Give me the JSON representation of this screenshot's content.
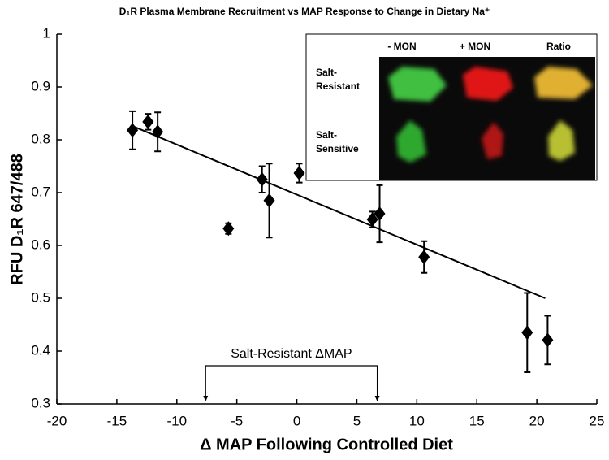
{
  "chart_data": {
    "type": "scatter",
    "title": "D₁R Plasma Membrane Recruitment vs MAP Response to Change in Dietary Na⁺",
    "x_label": "Δ MAP Following Controlled Diet",
    "y_label": "RFU D₁R 647/488",
    "x": [
      -13.7,
      -12.4,
      -11.6,
      -5.7,
      -2.9,
      -2.3,
      0.2,
      6.3,
      6.9,
      10.6,
      19.2,
      20.9
    ],
    "values": [
      0.818,
      0.834,
      0.815,
      0.632,
      0.725,
      0.685,
      0.737,
      0.649,
      0.66,
      0.578,
      0.435,
      0.421
    ],
    "errors": [
      0.036,
      0.015,
      0.037,
      0.01,
      0.025,
      0.07,
      0.018,
      0.015,
      0.054,
      0.03,
      0.075,
      0.046
    ],
    "color": "#000000",
    "fit_line": {
      "x": [
        -13.7,
        20.7
      ],
      "y": [
        0.826,
        0.5
      ]
    },
    "xlim": [
      -20,
      25
    ],
    "xticks": [
      -20,
      -15,
      -10,
      -5,
      0,
      5,
      10,
      15,
      20,
      25
    ],
    "ylim": [
      0.3,
      1
    ],
    "yticks": [
      0.3,
      0.4,
      0.5,
      0.6,
      0.7,
      0.8,
      0.9,
      1
    ],
    "annotation": {
      "text": "Salt-Resistant ΔMAP",
      "x": [
        -7.6,
        6.7
      ]
    },
    "inset": {
      "columns": [
        "- MON",
        "+ MON",
        "Ratio"
      ],
      "rows": [
        [
          "Salt-",
          "Resistant"
        ],
        [
          "Salt-",
          "Sensitive"
        ]
      ]
    }
  }
}
